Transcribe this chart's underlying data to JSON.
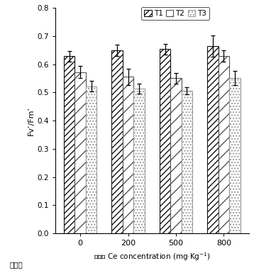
{
  "categories": [
    "0",
    "200",
    "500",
    "800"
  ],
  "x_label_prefix": "老羊茅",
  "groups": [
    "T1",
    "T2",
    "T3"
  ],
  "values": [
    [
      0.628,
      0.572,
      0.522
    ],
    [
      0.65,
      0.555,
      0.513
    ],
    [
      0.653,
      0.55,
      0.505
    ],
    [
      0.665,
      0.63,
      0.552
    ]
  ],
  "errors": [
    [
      0.018,
      0.022,
      0.018
    ],
    [
      0.02,
      0.028,
      0.018
    ],
    [
      0.018,
      0.018,
      0.013
    ],
    [
      0.038,
      0.02,
      0.025
    ]
  ],
  "ylabel": "Fv’/Fm’",
  "xlabel": "施放量 Ce concentration (mg·Kg$^{-1}$)",
  "ylim": [
    0,
    0.8
  ],
  "yticks": [
    0,
    0.1,
    0.2,
    0.3,
    0.4,
    0.5,
    0.6,
    0.7,
    0.8
  ],
  "legend_labels": [
    "T1",
    "T2",
    "T3"
  ],
  "bar_width": 0.23,
  "hatch_T1": "////",
  "hatch_T2": "////",
  "hatch_T3": "....",
  "fc_T1": "white",
  "fc_T2": "white",
  "fc_T3": "white",
  "ec_T1": "#111111",
  "ec_T2": "#555555",
  "ec_T3": "#999999"
}
